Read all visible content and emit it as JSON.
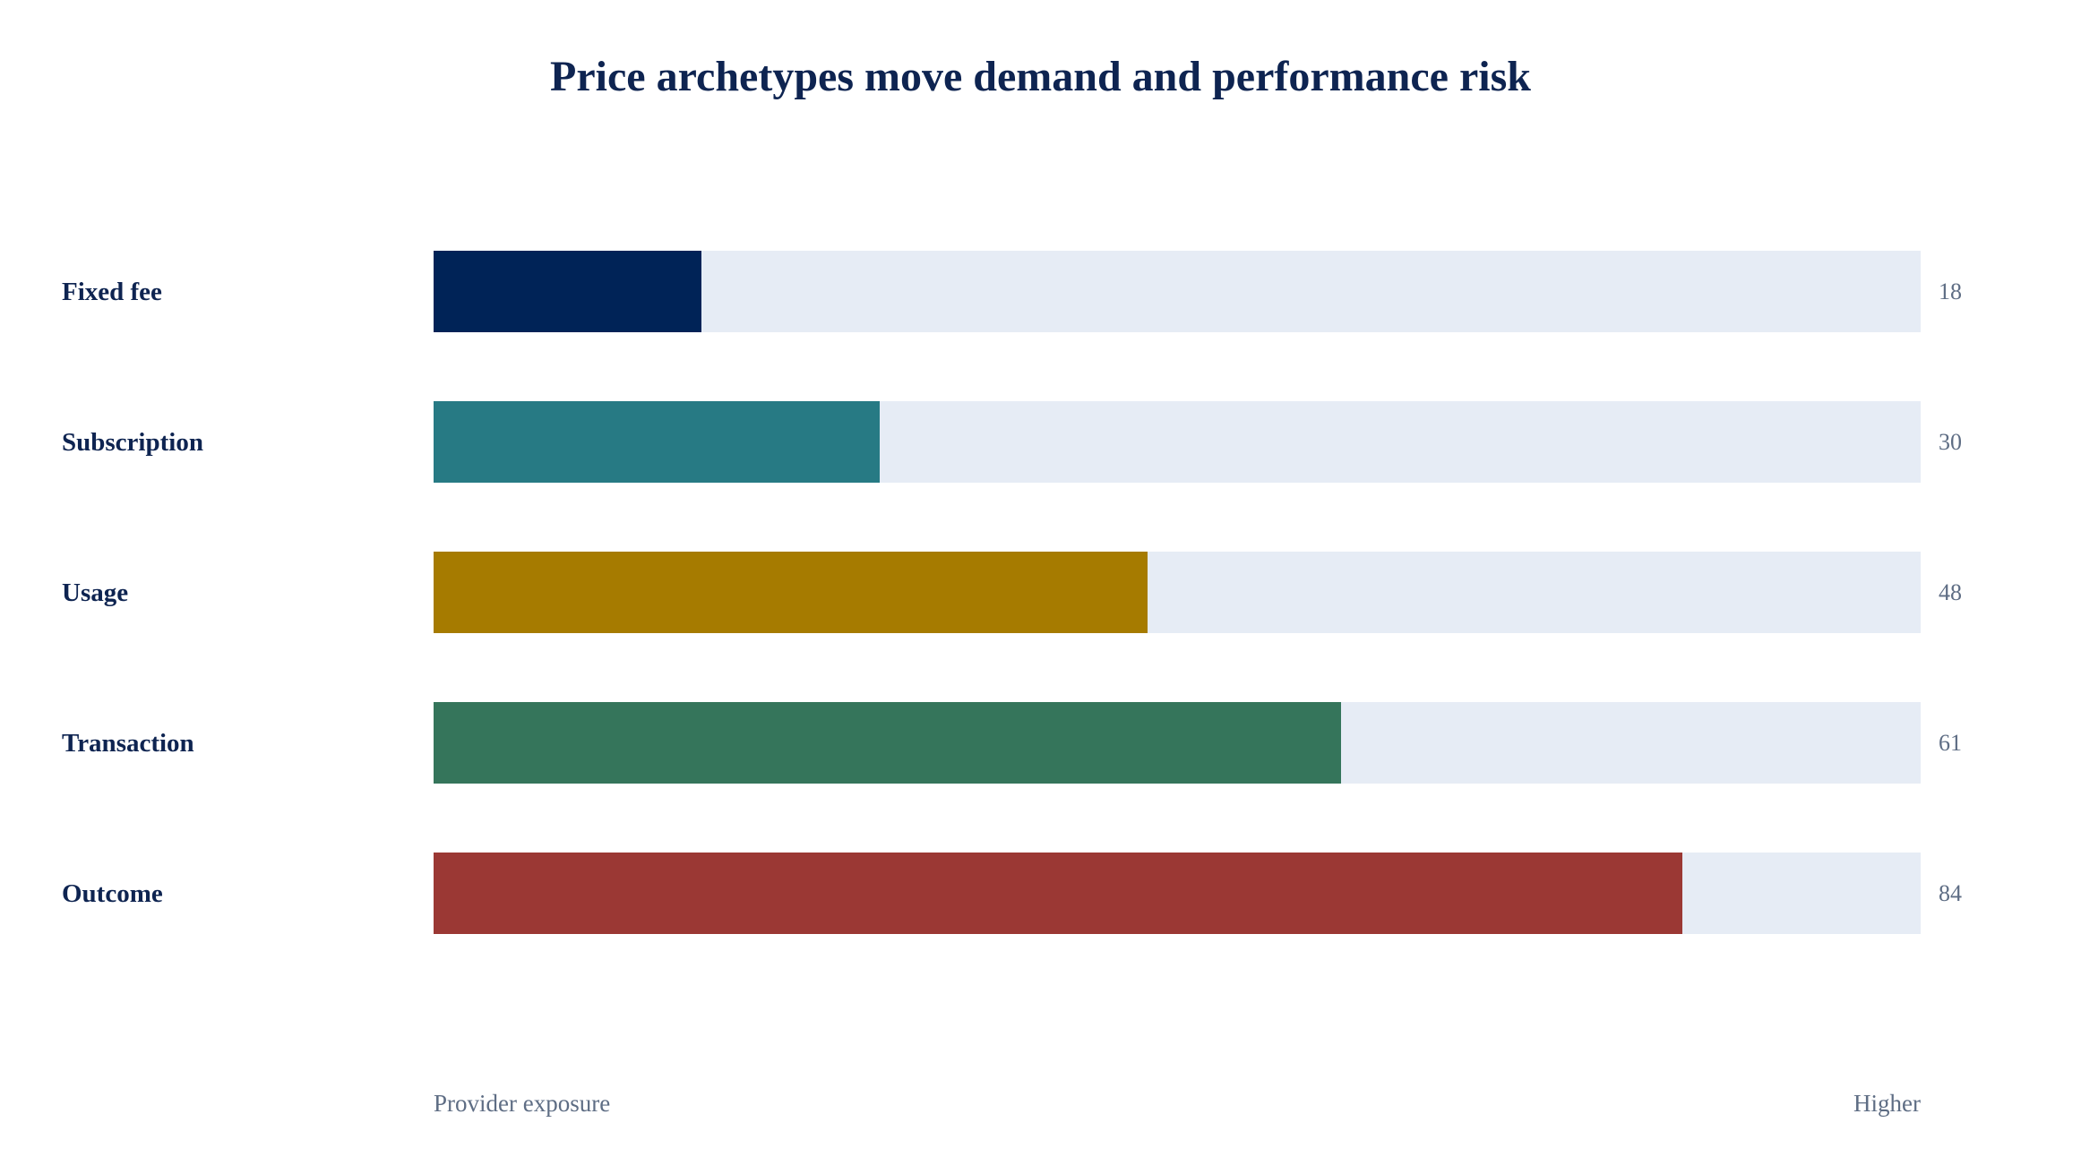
{
  "chart_data": {
    "type": "bar",
    "orientation": "horizontal",
    "title": "Price archetypes move demand and performance risk",
    "categories": [
      "Fixed fee",
      "Subscription",
      "Usage",
      "Transaction",
      "Outcome"
    ],
    "values": [
      18,
      30,
      48,
      61,
      84
    ],
    "colors": [
      "#002357",
      "#277a84",
      "#a67b00",
      "#35755b",
      "#9b3834"
    ],
    "track_color": "#e6ecf5",
    "xlim": [
      0,
      100
    ],
    "scale_labels": {
      "left": "Provider exposure",
      "right": "Higher"
    },
    "grid": false,
    "legend": "none"
  }
}
